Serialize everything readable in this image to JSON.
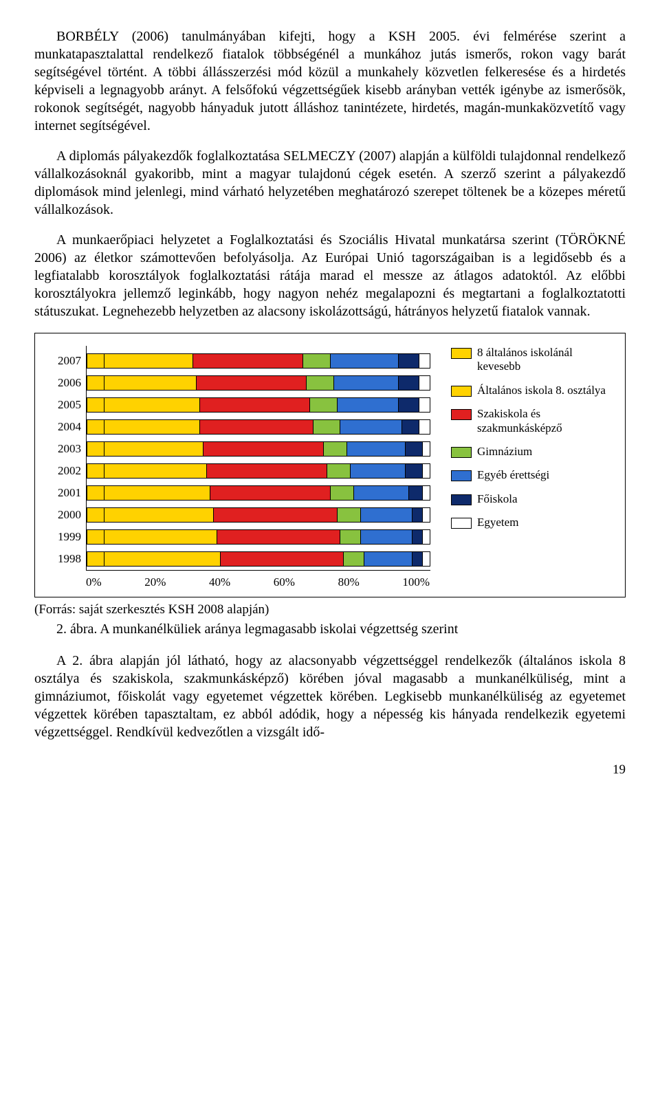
{
  "paragraphs": {
    "p1": "BORBÉLY (2006) tanulmányában kifejti, hogy a KSH 2005. évi felmérése szerint a munkatapasztalattal rendelkező fiatalok többségénél a munkához jutás ismerős, rokon vagy barát segítségével történt. A többi állásszerzési mód közül a munkahely közvetlen felkeresése és a hirdetés képviseli a legnagyobb arányt. A felsőfokú végzettségűek kisebb arányban vették igénybe az ismerősök, rokonok segítségét, nagyobb hányaduk jutott álláshoz tanintézete, hirdetés, magán-munkaközvetítő vagy internet segítségével.",
    "p2": "A diplomás pályakezdők foglalkoztatása SELMECZY (2007) alapján a külföldi tulajdonnal rendelkező vállalkozásoknál gyakoribb, mint a magyar tulajdonú cégek esetén. A szerző szerint a pályakezdő diplomások mind jelenlegi, mind várható helyzetében meghatározó szerepet töltenek be a közepes méretű vállalkozások.",
    "p3": "A munkaerőpiaci helyzetet a Foglalkoztatási és Szociális Hivatal munkatársa szerint (TÖRÖKNÉ 2006) az életkor számottevően befolyásolja. Az Európai Unió tagországaiban is a legidősebb és a legfiatalabb korosztályok foglalkoztatási rátája marad el messze az átlagos adatoktól. Az előbbi korosztályokra jellemző leginkább, hogy nagyon nehéz megalapozni és megtartani a foglalkoztatotti státuszukat. Legnehezebb helyzetben az alacsony iskolázottságú, hátrányos helyzetű fiatalok vannak.",
    "p4": "A 2. ábra alapján jól látható, hogy az alacsonyabb végzettséggel rendelkezők (általános iskola 8 osztálya és szakiskola, szakmunkásképző) körében jóval magasabb a munkanélküliség, mint a gimnáziumot, főiskolát vagy egyetemet végzettek körében. Legkisebb munkanélküliség az egyetemet végzettek körében tapasztaltam, ez abból adódik, hogy a népesség kis hányada rendelkezik egyetemi végzettséggel. Rendkívül kedvezőtlen a vizsgált idő-"
  },
  "chart": {
    "type": "stacked-bar-horizontal",
    "years": [
      "2007",
      "2006",
      "2005",
      "2004",
      "2003",
      "2002",
      "2001",
      "2000",
      "1999",
      "1998"
    ],
    "x_ticks": [
      "0%",
      "20%",
      "40%",
      "60%",
      "80%",
      "100%"
    ],
    "series": [
      {
        "label": "8 általános iskolánál kevesebb",
        "color": "#ffd200"
      },
      {
        "label": "Általános iskola 8. osztálya",
        "color": "#ffd200"
      },
      {
        "label": "Szakiskola és szakmunkásképző",
        "color": "#e02020"
      },
      {
        "label": "Gimnázium",
        "color": "#88c23f"
      },
      {
        "label": "Egyéb érettségi",
        "color": "#2f6fd0"
      },
      {
        "label": "Főiskola",
        "color": "#0e2a6b"
      },
      {
        "label": "Egyetem",
        "color": "#ffffff"
      }
    ],
    "data": {
      "2007": [
        5,
        26,
        32,
        8,
        20,
        6,
        3
      ],
      "2006": [
        5,
        27,
        32,
        8,
        19,
        6,
        3
      ],
      "2005": [
        5,
        28,
        32,
        8,
        18,
        6,
        3
      ],
      "2004": [
        5,
        28,
        33,
        8,
        18,
        5,
        3
      ],
      "2003": [
        5,
        29,
        35,
        7,
        17,
        5,
        2
      ],
      "2002": [
        5,
        30,
        35,
        7,
        16,
        5,
        2
      ],
      "2001": [
        5,
        31,
        35,
        7,
        16,
        4,
        2
      ],
      "2000": [
        5,
        32,
        36,
        7,
        15,
        3,
        2
      ],
      "1999": [
        5,
        33,
        36,
        6,
        15,
        3,
        2
      ],
      "1998": [
        5,
        34,
        36,
        6,
        14,
        3,
        2
      ]
    },
    "background_color": "#ffffff",
    "border_color": "#000000",
    "label_fontsize": 17
  },
  "source": "(Forrás: saját szerkesztés KSH 2008 alapján)",
  "caption": "2. ábra. A munkanélküliek aránya legmagasabb iskolai végzettség szerint",
  "pagenum": "19"
}
